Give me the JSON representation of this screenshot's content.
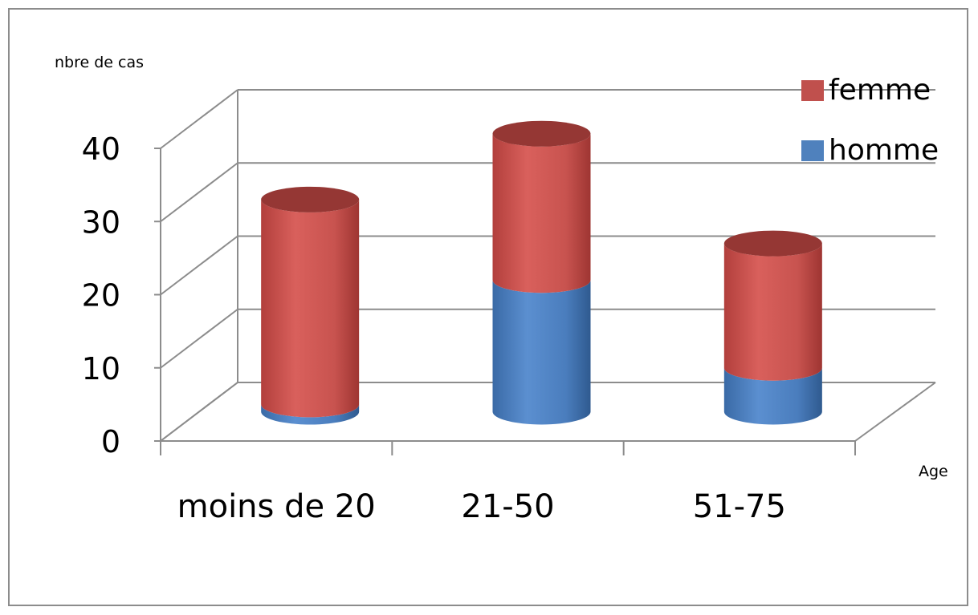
{
  "chart_data": {
    "type": "bar",
    "stacked": true,
    "style": "3d-cylinder",
    "categories": [
      "moins de 20",
      "21-50",
      "51-75"
    ],
    "series": [
      {
        "name": "homme",
        "values": [
          1,
          18,
          6
        ],
        "color": "#4f81bd"
      },
      {
        "name": "femme",
        "values": [
          28,
          20,
          17
        ],
        "color": "#c0504d"
      }
    ],
    "ylabel": "nbre de cas",
    "xlabel": "Age",
    "ylim": [
      0,
      40
    ],
    "yticks": [
      0,
      10,
      20,
      30,
      40
    ],
    "grid": true,
    "legend_position": "top-right"
  }
}
